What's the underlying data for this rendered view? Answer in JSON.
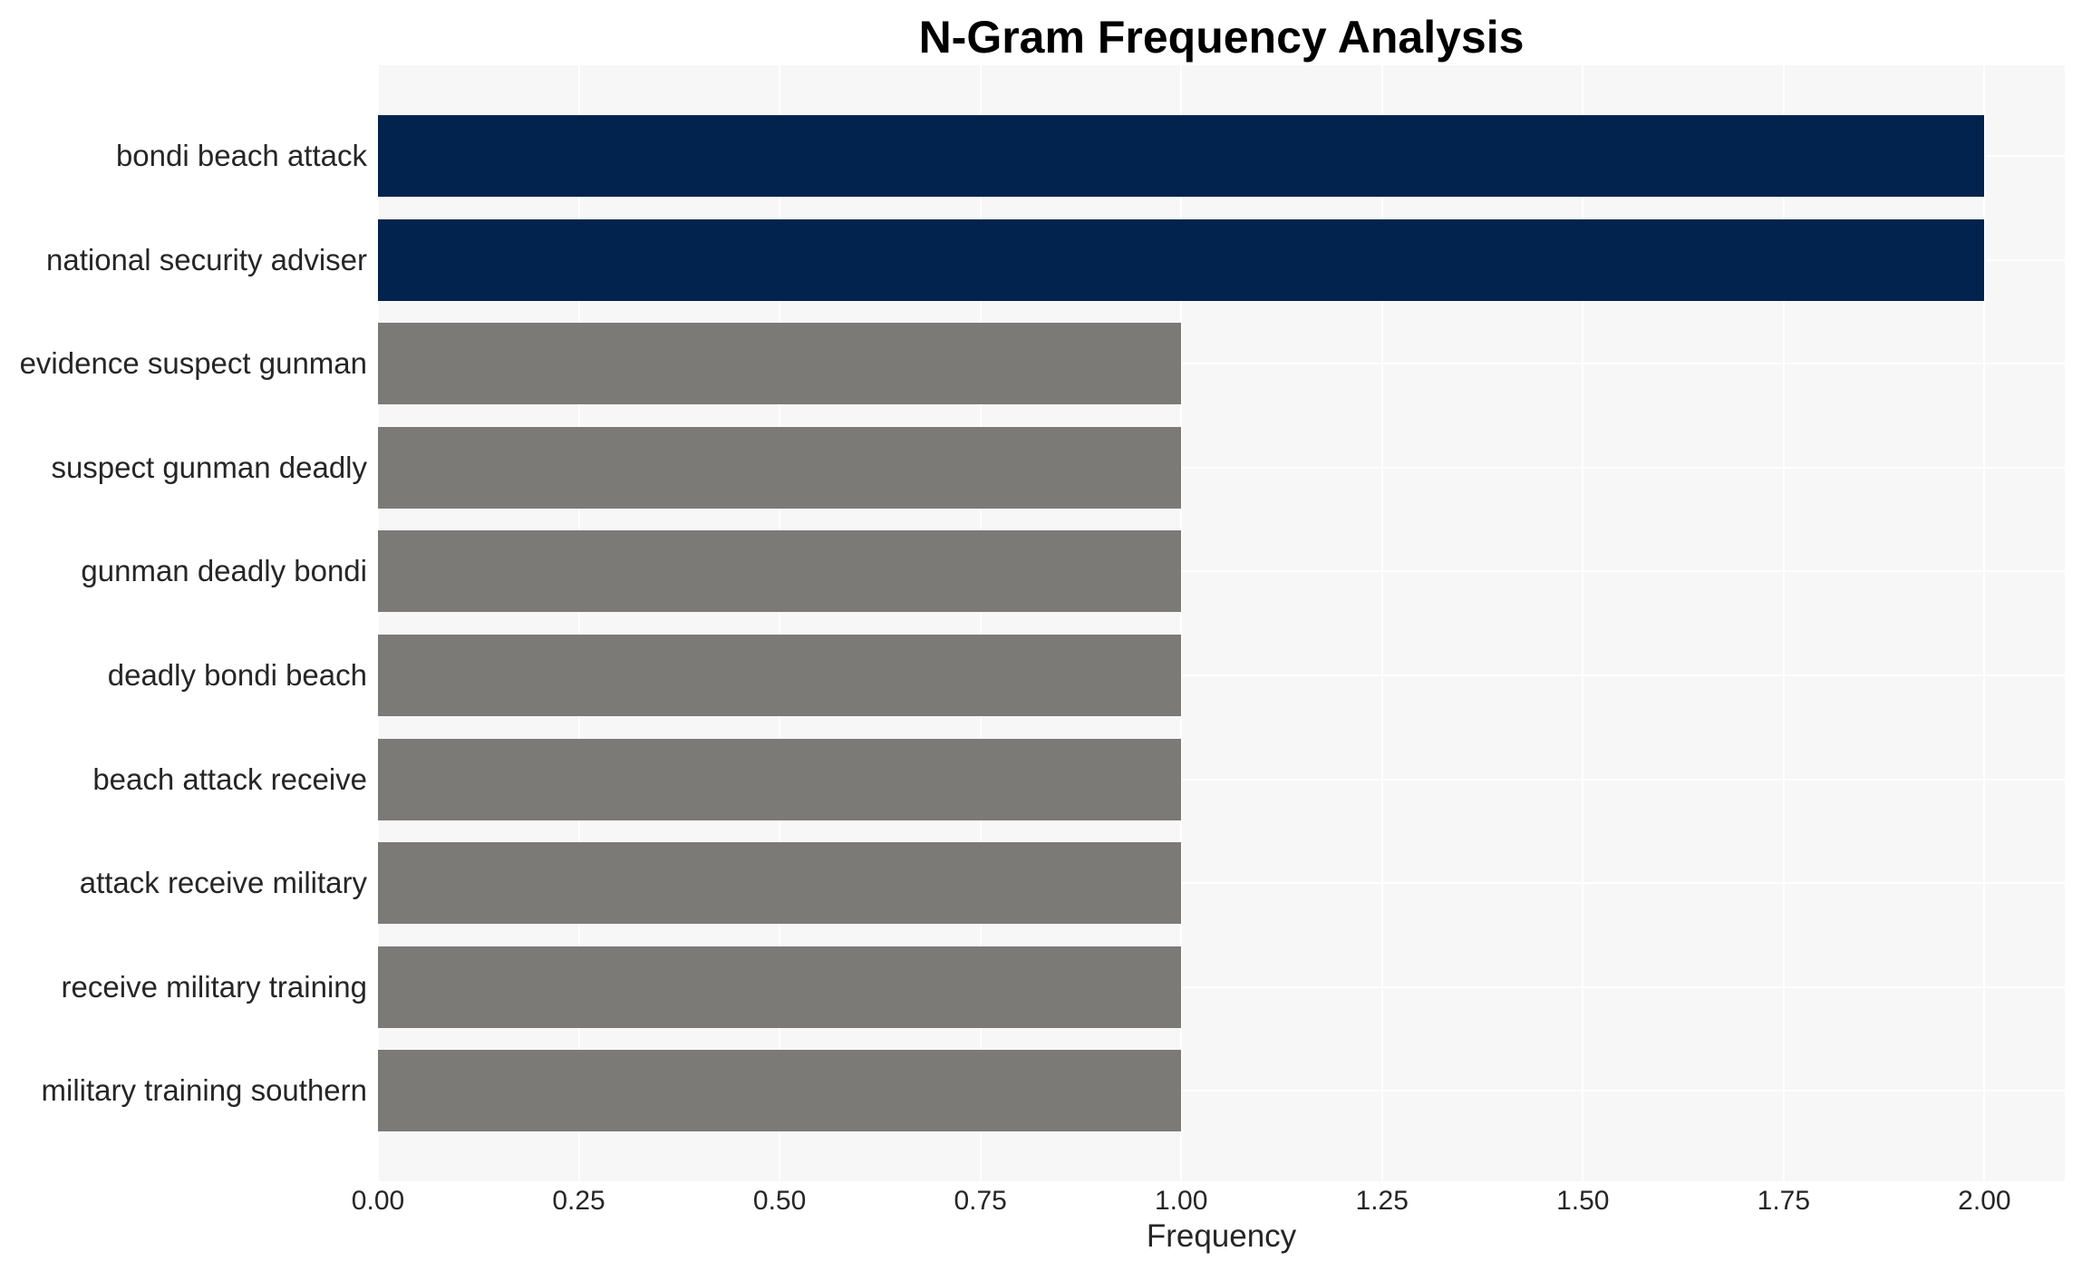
{
  "title": "N-Gram Frequency Analysis",
  "axes": {
    "xlabel": "Frequency"
  },
  "chart_data": {
    "type": "bar",
    "orientation": "horizontal",
    "title": "N-Gram Frequency Analysis",
    "xlabel": "Frequency",
    "ylabel": "",
    "categories": [
      "bondi beach attack",
      "national security adviser",
      "evidence suspect gunman",
      "suspect gunman deadly",
      "gunman deadly bondi",
      "deadly bondi beach",
      "beach attack receive",
      "attack receive military",
      "receive military training",
      "military training southern"
    ],
    "values": [
      2,
      2,
      1,
      1,
      1,
      1,
      1,
      1,
      1,
      1
    ],
    "bar_colors": [
      "#02234d",
      "#02234d",
      "#7b7a77",
      "#7b7a77",
      "#7b7a77",
      "#7b7a77",
      "#7b7a77",
      "#7b7a77",
      "#7b7a77",
      "#7b7a77"
    ],
    "xlim": [
      0,
      2.1
    ],
    "xticks": [
      0,
      0.25,
      0.5,
      0.75,
      1,
      1.25,
      1.5,
      1.75,
      2
    ],
    "xtick_labels": [
      "0.00",
      "0.25",
      "0.50",
      "0.75",
      "1.00",
      "1.25",
      "1.50",
      "1.75",
      "2.00"
    ],
    "grid": true,
    "legend": false,
    "colors": {
      "highlight": "#02234d",
      "default": "#7b7a77",
      "plot_background": "#f7f7f7",
      "grid_line": "#ffffff",
      "text": "#262626"
    }
  }
}
